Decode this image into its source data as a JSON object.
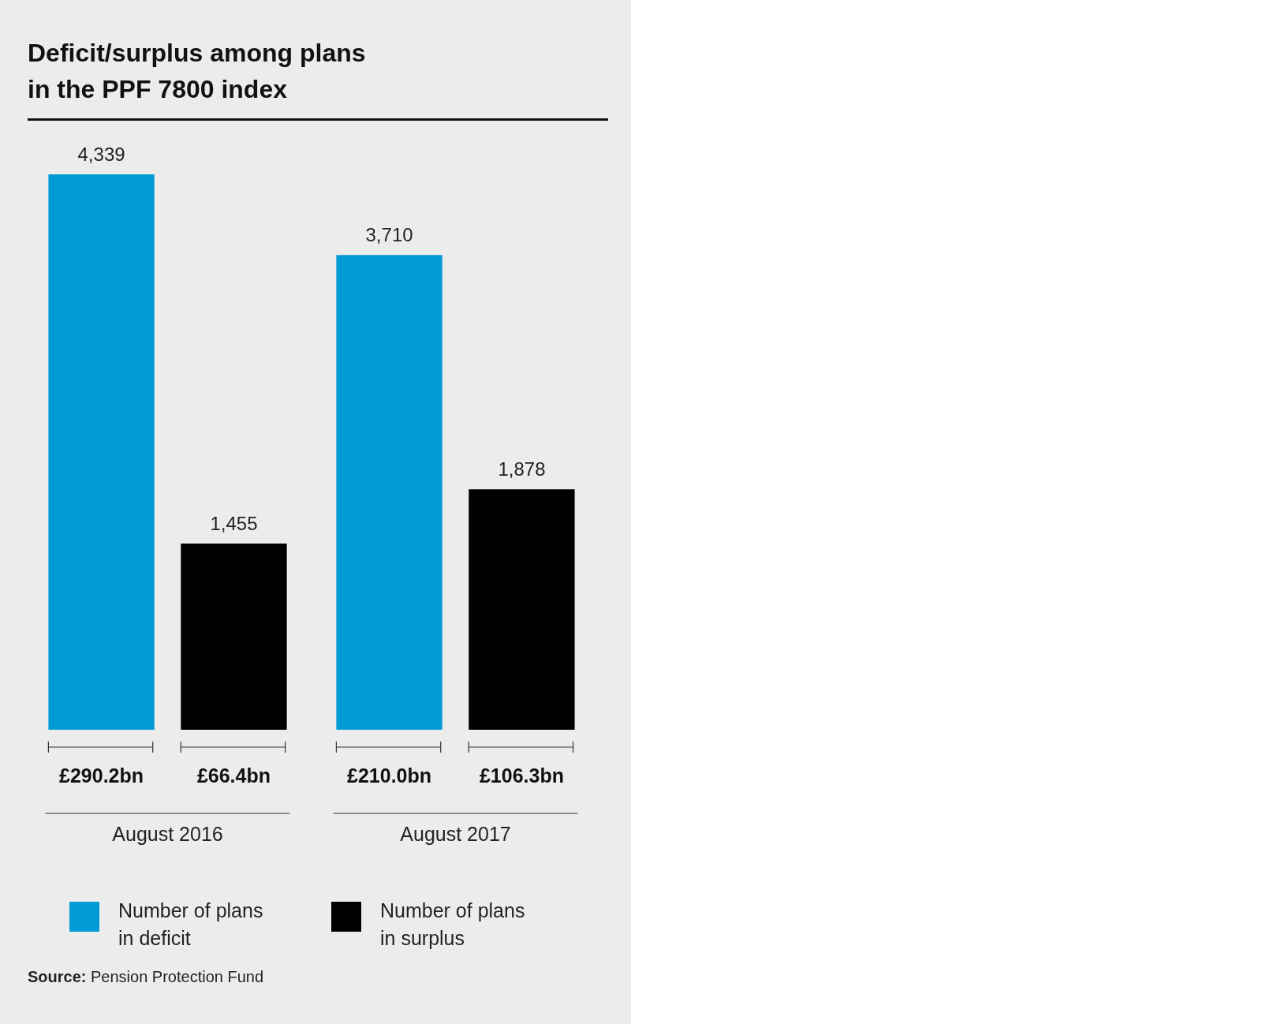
{
  "chart_data": {
    "type": "bar",
    "title": "Deficit/surplus among plans\nin the PPF 7800 index",
    "categories": [
      "August 2016",
      "August 2017"
    ],
    "series": [
      {
        "name": "Number of plans in deficit",
        "color": "#009bd5",
        "values": [
          4339,
          3710
        ],
        "value_labels": [
          "4,339",
          "3,710"
        ]
      },
      {
        "name": "Number of plans in surplus",
        "color": "#000000",
        "values": [
          1455,
          1878
        ],
        "value_labels": [
          "1,455",
          "1,878"
        ]
      }
    ],
    "legend": "bottom",
    "annotations": [
      "£290.2bn",
      "£66.4bn",
      "£210.0bn",
      "£106.3bn",
      "Source: Pension Protection Fund"
    ]
  }
}
